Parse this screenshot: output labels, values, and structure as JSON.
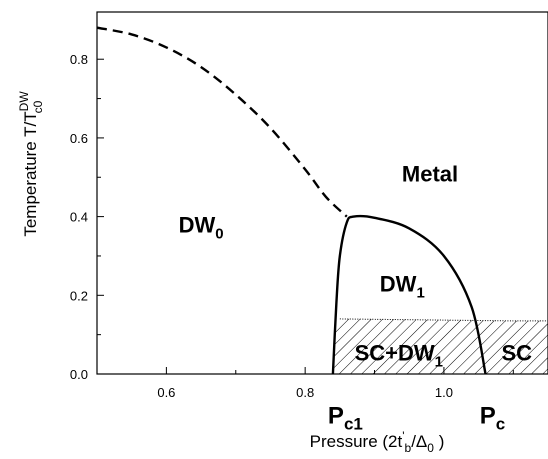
{
  "chart_data": {
    "type": "line",
    "xlabel": {
      "prefix": "Pressure  (2t",
      "prime": "'",
      "sub_b": "b",
      "mid": "/Δ",
      "sub_0": "0",
      "suffix": " )"
    },
    "ylabel": {
      "prefix": "Temperature  T/T",
      "sup": "DW",
      "sub": "c0"
    },
    "xlim": [
      0.5,
      1.15
    ],
    "ylim": [
      0.0,
      0.92
    ],
    "x_major_ticks": [
      0.6,
      0.8,
      1.0
    ],
    "x_tick_labels": [
      "0.6",
      "0.8",
      "1.0"
    ],
    "x_minor_ticks": [
      0.5,
      0.7,
      0.9,
      1.1
    ],
    "y_major_ticks": [
      0.0,
      0.2,
      0.4,
      0.6,
      0.8
    ],
    "y_tick_labels": [
      "0.0",
      "0.2",
      "0.4",
      "0.6",
      "0.8"
    ],
    "y_minor_ticks": [
      0.1,
      0.3,
      0.5,
      0.7
    ],
    "grid": false,
    "series": [
      {
        "style": "dashed",
        "x": [
          0.5,
          0.55,
          0.6,
          0.65,
          0.7,
          0.75,
          0.8,
          0.83,
          0.86
        ],
        "y": [
          0.88,
          0.863,
          0.83,
          0.78,
          0.71,
          0.625,
          0.52,
          0.45,
          0.4
        ]
      },
      {
        "style": "solid",
        "x": [
          0.84,
          0.845,
          0.85,
          0.86,
          0.87,
          0.9,
          0.95,
          1.0,
          1.04,
          1.06
        ],
        "y": [
          0.0,
          0.18,
          0.3,
          0.385,
          0.4,
          0.397,
          0.37,
          0.3,
          0.17,
          0.0
        ]
      },
      {
        "style": "dotted",
        "x": [
          0.85,
          0.9,
          1.0,
          1.1,
          1.15
        ],
        "y": [
          0.14,
          0.139,
          0.137,
          0.135,
          0.135
        ]
      }
    ],
    "hatched_region": {
      "top_x": [
        0.85,
        0.9,
        1.0,
        1.1,
        1.15
      ],
      "top_y": [
        0.14,
        0.139,
        0.137,
        0.135,
        0.135
      ],
      "left_x": [
        0.84,
        0.845,
        0.85
      ],
      "left_y": [
        0.0,
        0.12,
        0.14
      ]
    },
    "annotations": [
      {
        "main": "DW",
        "sub": "0",
        "x": 0.65,
        "y": 0.38,
        "kind": "region"
      },
      {
        "main": "Metal",
        "sub": "",
        "x": 0.98,
        "y": 0.51,
        "kind": "region"
      },
      {
        "main": "DW",
        "sub": "1",
        "x": 0.94,
        "y": 0.23,
        "kind": "region"
      },
      {
        "main": "SC+DW",
        "sub": "1",
        "x": 0.935,
        "y": 0.055,
        "kind": "region"
      },
      {
        "main": "SC",
        "sub": "",
        "x": 1.105,
        "y": 0.055,
        "kind": "region"
      },
      {
        "main": "P",
        "sub": "c1",
        "x": 0.858,
        "y": -0.105,
        "kind": "point"
      },
      {
        "main": "P",
        "sub": "c",
        "x": 1.07,
        "y": -0.105,
        "kind": "point"
      }
    ]
  }
}
